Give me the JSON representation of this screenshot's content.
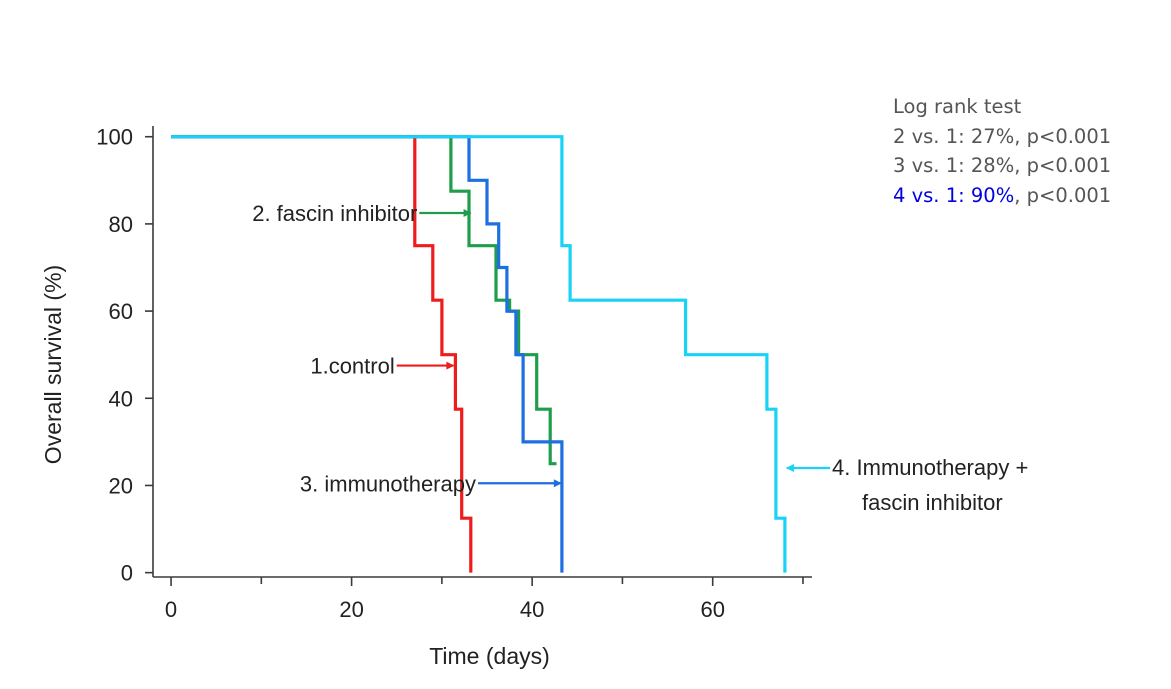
{
  "chart_data": {
    "type": "line",
    "title": "",
    "xlabel": "Time (days)",
    "ylabel": "Overall survival (%)",
    "xlim": [
      -2,
      71
    ],
    "ylim": [
      -1,
      102
    ],
    "xticks": [
      0,
      20,
      40,
      60
    ],
    "yticks": [
      0,
      20,
      40,
      60,
      80,
      100
    ],
    "grid": false,
    "legend": "inline labels",
    "series": [
      {
        "name": "1.control",
        "color": "#ee1c1c",
        "points": [
          [
            0,
            100
          ],
          [
            27,
            100
          ],
          [
            27,
            75
          ],
          [
            29,
            75
          ],
          [
            29,
            62.5
          ],
          [
            30,
            62.5
          ],
          [
            30,
            50
          ],
          [
            31.5,
            50
          ],
          [
            31.5,
            37.5
          ],
          [
            32.2,
            37.5
          ],
          [
            32.2,
            12.5
          ],
          [
            33.2,
            12.5
          ],
          [
            33.2,
            0
          ]
        ]
      },
      {
        "name": "2. fascin inhibitor",
        "color": "#1e9e4a",
        "points": [
          [
            0,
            100
          ],
          [
            31,
            100
          ],
          [
            31,
            87.5
          ],
          [
            33,
            87.5
          ],
          [
            33,
            75
          ],
          [
            36,
            75
          ],
          [
            36,
            62.5
          ],
          [
            37.5,
            62.5
          ],
          [
            37.5,
            60
          ],
          [
            38.5,
            60
          ],
          [
            38.5,
            50
          ],
          [
            40.5,
            50
          ],
          [
            40.5,
            37.5
          ],
          [
            42,
            37.5
          ],
          [
            42,
            25
          ],
          [
            42.7,
            25
          ]
        ]
      },
      {
        "name": "3. immunotherapy",
        "color": "#1e6fe0",
        "points": [
          [
            0,
            100
          ],
          [
            33,
            100
          ],
          [
            33,
            90
          ],
          [
            35,
            90
          ],
          [
            35,
            80
          ],
          [
            36.3,
            80
          ],
          [
            36.3,
            70
          ],
          [
            37.2,
            70
          ],
          [
            37.2,
            60
          ],
          [
            38.2,
            60
          ],
          [
            38.2,
            50
          ],
          [
            39,
            50
          ],
          [
            39,
            30
          ],
          [
            43.3,
            30
          ],
          [
            43.3,
            0
          ]
        ]
      },
      {
        "name": "4. Immunotherapy + fascin inhibitor",
        "color": "#19d3f6",
        "points": [
          [
            0,
            100
          ],
          [
            43.3,
            100
          ],
          [
            43.3,
            75
          ],
          [
            44.2,
            75
          ],
          [
            44.2,
            62.5
          ],
          [
            57,
            62.5
          ],
          [
            57,
            50
          ],
          [
            66,
            50
          ],
          [
            66,
            37.5
          ],
          [
            67,
            37.5
          ],
          [
            67,
            12.5
          ],
          [
            68,
            12.5
          ],
          [
            68,
            0
          ]
        ]
      }
    ],
    "annotations": [
      {
        "text": "2. fascin inhibitor",
        "lines": [
          "2. fascin inhibitor"
        ],
        "series": "2. fascin inhibitor",
        "arrow_from": [
          27.5,
          82.5
        ],
        "arrow_to": [
          33.2,
          82.5
        ]
      },
      {
        "text": "1.control",
        "lines": [
          "1.control"
        ],
        "series": "1.control",
        "arrow_from": [
          25,
          47.5
        ],
        "arrow_to": [
          31.3,
          47.5
        ]
      },
      {
        "text": "3. immunotherapy",
        "lines": [
          "3. immunotherapy"
        ],
        "series": "3. immunotherapy",
        "arrow_from": [
          34,
          20.5
        ],
        "arrow_to": [
          43.2,
          20.5
        ]
      },
      {
        "text": "4. Immunotherapy + fascin inhibitor",
        "lines": [
          "4. Immunotherapy +",
          "fascin inhibitor"
        ],
        "series": "4. Immunotherapy + fascin inhibitor",
        "arrow_from": [
          73,
          24
        ],
        "arrow_to": [
          68.2,
          24
        ]
      }
    ]
  },
  "stats": {
    "title": "Log rank test",
    "line1": "2 vs. 1: 27%, p<0.001",
    "line2": "3 vs. 1: 28%, p<0.001",
    "line3_highlight": "4 vs. 1: 90%",
    "line3_rest": ", p<0.001",
    "highlight_color": "#0000e0"
  }
}
